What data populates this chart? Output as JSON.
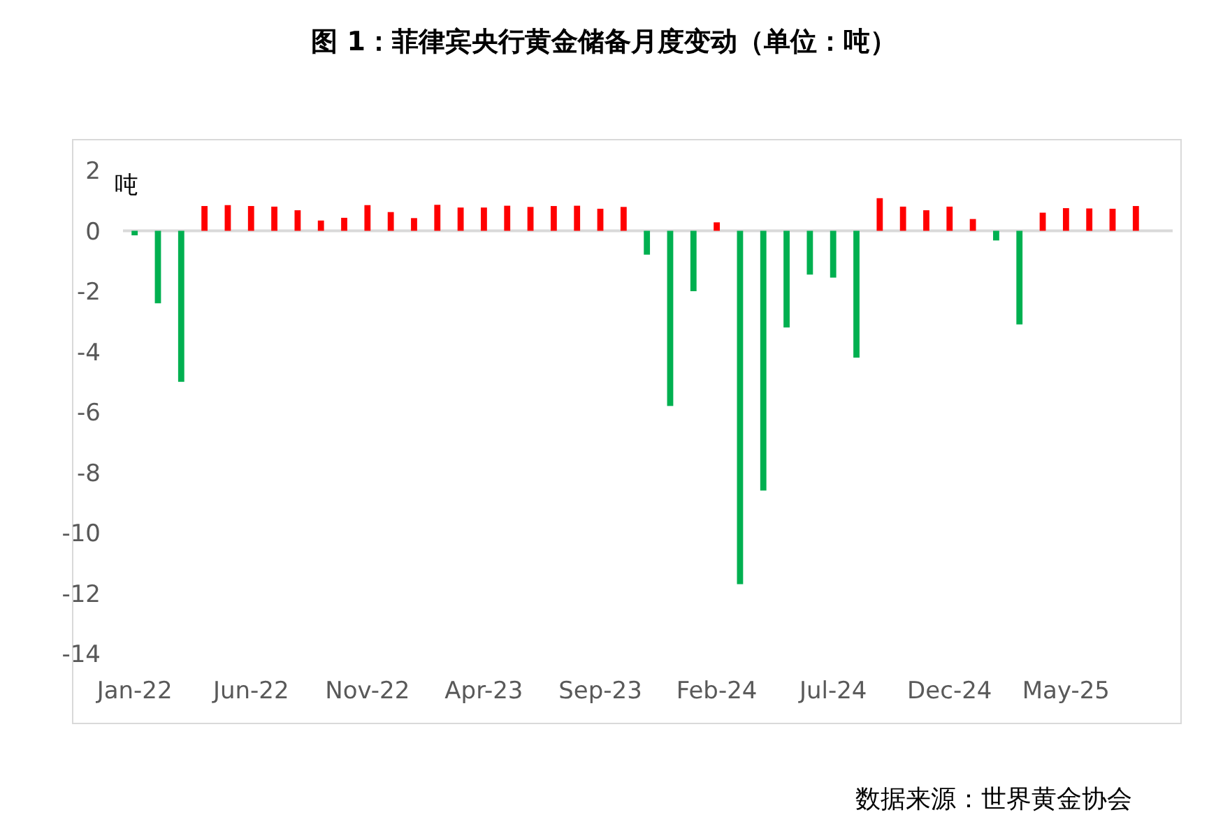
{
  "chart_data": {
    "type": "bar",
    "title": "图 1：菲律宾央行黄金储备月度变动（单位：吨）",
    "ylabel": "吨",
    "categories": [
      "Jan-22",
      null,
      null,
      null,
      null,
      "Jun-22",
      null,
      null,
      null,
      null,
      "Nov-22",
      null,
      null,
      null,
      null,
      "Apr-23",
      null,
      null,
      null,
      null,
      "Sep-23",
      null,
      null,
      null,
      null,
      "Feb-24",
      null,
      null,
      null,
      null,
      "Jul-24",
      null,
      null,
      null,
      null,
      "Dec-24",
      null,
      null,
      null,
      null,
      "May-25",
      null,
      null,
      null
    ],
    "values": [
      -0.15,
      -2.4,
      -5.0,
      0.82,
      0.85,
      0.82,
      0.8,
      0.68,
      0.34,
      0.43,
      0.85,
      0.62,
      0.42,
      0.86,
      0.77,
      0.77,
      0.83,
      0.79,
      0.82,
      0.83,
      0.73,
      0.79,
      -0.79,
      -5.8,
      -2.0,
      0.28,
      -11.7,
      -8.6,
      -3.2,
      -1.45,
      -1.55,
      -4.2,
      1.08,
      0.8,
      0.68,
      0.8,
      0.39,
      -0.32,
      -3.1,
      0.6,
      0.75,
      0.74,
      0.73,
      0.82
    ],
    "colors": [
      "#00b050",
      "#00b050",
      "#00b050",
      "#ff0000",
      "#ff0000",
      "#ff0000",
      "#ff0000",
      "#ff0000",
      "#ff0000",
      "#ff0000",
      "#ff0000",
      "#ff0000",
      "#ff0000",
      "#ff0000",
      "#ff0000",
      "#ff0000",
      "#ff0000",
      "#ff0000",
      "#ff0000",
      "#ff0000",
      "#ff0000",
      "#ff0000",
      "#00b050",
      "#00b050",
      "#00b050",
      "#ff0000",
      "#00b050",
      "#00b050",
      "#00b050",
      "#00b050",
      "#00b050",
      "#00b050",
      "#ff0000",
      "#ff0000",
      "#ff0000",
      "#ff0000",
      "#ff0000",
      "#00b050",
      "#00b050",
      "#ff0000",
      "#ff0000",
      "#ff0000",
      "#ff0000",
      "#ff0000"
    ],
    "ylim": [
      -14,
      2
    ],
    "yticks": [
      2,
      0,
      -2,
      -4,
      -6,
      -8,
      -10,
      -12,
      -14
    ],
    "annotations": [
      "数据来源：世界黄金协会"
    ]
  }
}
